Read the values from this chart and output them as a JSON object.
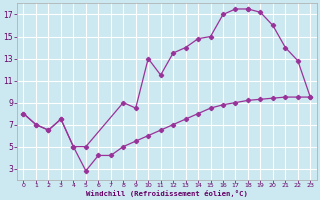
{
  "background_color": "#cce8f0",
  "grid_color": "#ffffff",
  "line_color": "#993399",
  "xlabel": "Windchill (Refroidissement éolien,°C)",
  "xlabel_color": "#660066",
  "tick_color": "#660066",
  "xlim": [
    -0.5,
    23.5
  ],
  "ylim": [
    2,
    18
  ],
  "yticks": [
    3,
    5,
    7,
    9,
    11,
    13,
    15,
    17
  ],
  "xticks": [
    0,
    1,
    2,
    3,
    4,
    5,
    6,
    7,
    8,
    9,
    10,
    11,
    12,
    13,
    14,
    15,
    16,
    17,
    18,
    19,
    20,
    21,
    22,
    23
  ],
  "curve_upper_x": [
    0,
    1,
    2,
    3,
    4,
    5,
    8,
    9,
    10,
    11,
    12,
    13,
    14,
    15,
    16,
    17,
    18
  ],
  "curve_upper_y": [
    8.0,
    7.0,
    6.5,
    7.5,
    5.0,
    5.0,
    9.0,
    8.5,
    13.0,
    11.5,
    13.5,
    14.0,
    14.8,
    15.0,
    17.0,
    17.5,
    17.5
  ],
  "curve_lower_x": [
    0,
    1,
    2,
    3,
    4,
    5,
    6,
    7,
    8,
    9,
    10,
    11,
    12,
    13,
    14,
    15,
    16,
    17,
    18,
    19,
    20,
    21,
    22,
    23
  ],
  "curve_lower_y": [
    8.0,
    7.0,
    6.5,
    7.5,
    5.0,
    2.8,
    4.2,
    4.2,
    5.0,
    5.5,
    6.0,
    6.5,
    7.0,
    7.5,
    8.0,
    8.5,
    8.8,
    9.0,
    9.2,
    9.3,
    9.4,
    9.5,
    9.5,
    9.5
  ],
  "curve_right_x": [
    18,
    19,
    20,
    21,
    22,
    23
  ],
  "curve_right_y": [
    17.5,
    17.2,
    16.0,
    14.0,
    12.8,
    9.5
  ]
}
